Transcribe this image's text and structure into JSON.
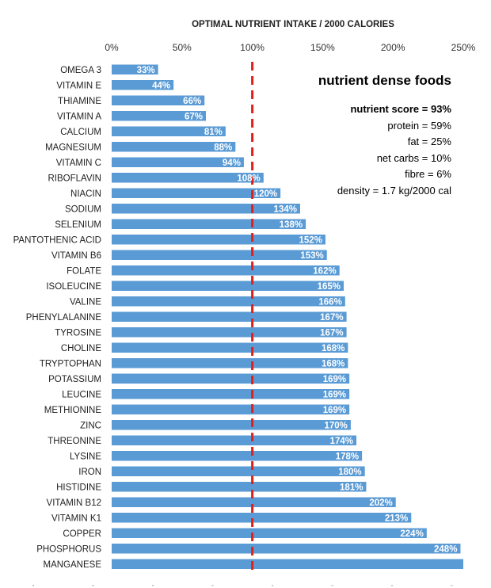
{
  "chart_data": {
    "type": "bar",
    "orientation": "horizontal",
    "title": "OPTIMAL NUTRIENT INTAKE / 2000 CALORIES",
    "xlim": [
      0,
      250
    ],
    "x_ticks": [
      0,
      50,
      100,
      150,
      200,
      250
    ],
    "x_tick_labels": [
      "0%",
      "50%",
      "100%",
      "150%",
      "200%",
      "250%"
    ],
    "reference_line": {
      "value": 100,
      "style": "dashed",
      "color": "#e0201b"
    },
    "bar_color": "#5b9bd5",
    "categories": [
      "OMEGA 3",
      "VITAMIN E",
      "THIAMINE",
      "VITAMIN A",
      "CALCIUM",
      "MAGNESIUM",
      "VITAMIN C",
      "RIBOFLAVIN",
      "NIACIN",
      "SODIUM",
      "SELENIUM",
      "PANTOTHENIC ACID",
      "VITAMIN B6",
      "FOLATE",
      "ISOLEUCINE",
      "VALINE",
      "PHENYLALANINE",
      "TYROSINE",
      "CHOLINE",
      "TRYPTOPHAN",
      "POTASSIUM",
      "LEUCINE",
      "METHIONINE",
      "ZINC",
      "THREONINE",
      "LYSINE",
      "IRON",
      "HISTIDINE",
      "VITAMIN B12",
      "VITAMIN K1",
      "COPPER",
      "PHOSPHORUS",
      "MANGANESE"
    ],
    "values": [
      33,
      44,
      66,
      67,
      81,
      88,
      94,
      108,
      120,
      134,
      138,
      152,
      153,
      162,
      165,
      166,
      167,
      167,
      168,
      168,
      169,
      169,
      169,
      170,
      174,
      178,
      180,
      181,
      202,
      213,
      224,
      248,
      250
    ],
    "labels": [
      "33%",
      "44%",
      "66%",
      "67%",
      "81%",
      "88%",
      "94%",
      "108%",
      "120%",
      "134%",
      "138%",
      "152%",
      "153%",
      "162%",
      "165%",
      "166%",
      "167%",
      "167%",
      "168%",
      "168%",
      "169%",
      "169%",
      "169%",
      "170%",
      "174%",
      "178%",
      "180%",
      "181%",
      "202%",
      "213%",
      "224%",
      "248%",
      ""
    ]
  },
  "legend": {
    "title": "nutrient dense foods",
    "lines": [
      "nutrient score = 93%",
      "protein = 59%",
      "fat = 25%",
      "net carbs = 10%",
      "fibre = 6%",
      "density = 1.7 kg/2000 cal"
    ]
  }
}
